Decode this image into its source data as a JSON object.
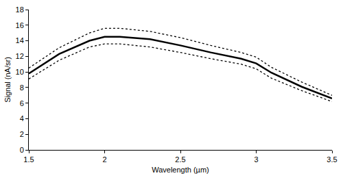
{
  "chart_data": {
    "type": "line",
    "x_label": "Wavelength (µm)",
    "y_label": "Signal (nA/sr)",
    "x": [
      1.5,
      1.7,
      1.9,
      2.0,
      2.1,
      2.3,
      2.5,
      2.7,
      2.9,
      3.0,
      3.1,
      3.3,
      3.5
    ],
    "series": [
      {
        "color": "#000000",
        "line_style": "solid",
        "values": [
          9.8,
          12.3,
          14.0,
          14.5,
          14.5,
          14.2,
          13.4,
          12.5,
          11.7,
          11.1,
          9.9,
          8.1,
          6.6
        ]
      },
      {
        "color": "#000000",
        "line_style": "dotted",
        "values": [
          10.5,
          13.1,
          15.0,
          15.6,
          15.6,
          15.2,
          14.4,
          13.4,
          12.5,
          11.9,
          10.6,
          8.7,
          7.0
        ]
      },
      {
        "color": "#000000",
        "line_style": "dotted",
        "values": [
          9.1,
          11.5,
          13.2,
          13.6,
          13.6,
          13.2,
          12.5,
          11.7,
          11.0,
          10.4,
          9.2,
          7.6,
          6.2
        ]
      }
    ],
    "xlim": [
      1.5,
      3.5
    ],
    "xticks": [
      1.5,
      2,
      2.5,
      3,
      3.5
    ],
    "ylim": [
      0,
      18
    ],
    "yticks": [
      0,
      2,
      4,
      6,
      8,
      10,
      12,
      14,
      16,
      18
    ],
    "grid": false
  }
}
